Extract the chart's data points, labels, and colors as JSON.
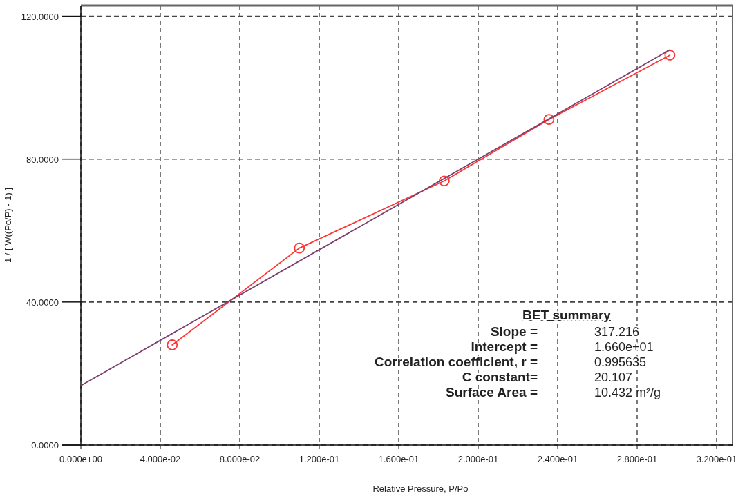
{
  "chart_data": {
    "type": "line",
    "xlabel": "Relative Pressure, P/Po",
    "ylabel": "1 / [ W((Po/P) - 1) ]",
    "series": [
      {
        "color": "#ff3333",
        "marker": "circle",
        "x": [
          0.046,
          0.11,
          0.1829,
          0.2356,
          0.2965
        ],
        "values": [
          28.0,
          55.1,
          73.9,
          91.1,
          109.1
        ]
      },
      {
        "color": "#7a3f6e",
        "marker": "none",
        "x": [
          0,
          0.2965
        ],
        "values": [
          16.6,
          110.6
        ]
      }
    ],
    "xlim": [
      0,
      0.328
    ],
    "ylim": [
      0,
      123
    ],
    "xticks": [
      {
        "value": 0,
        "label": "0.000e+00"
      },
      {
        "value": 0.04,
        "label": "4.000e-02"
      },
      {
        "value": 0.08,
        "label": "8.000e-02"
      },
      {
        "value": 0.12,
        "label": "1.200e-01"
      },
      {
        "value": 0.16,
        "label": "1.600e-01"
      },
      {
        "value": 0.2,
        "label": "2.000e-01"
      },
      {
        "value": 0.24,
        "label": "2.400e-01"
      },
      {
        "value": 0.28,
        "label": "2.800e-01"
      },
      {
        "value": 0.32,
        "label": "3.200e-01"
      }
    ],
    "yticks": [
      {
        "value": 0,
        "label": "0.0000"
      },
      {
        "value": 40,
        "label": "40.0000"
      },
      {
        "value": 80,
        "label": "80.0000"
      },
      {
        "value": 120,
        "label": "120.0000"
      }
    ],
    "grid": true,
    "line_style": "solid",
    "annotations": [
      "BET summary",
      "Slope =",
      "317.216",
      "Intercept =",
      "1.660e+01",
      "Correlation coefficient, r =",
      "0.995635",
      "C constant=",
      "20.107",
      "Surface Area =",
      "10.432 m²/g"
    ]
  }
}
